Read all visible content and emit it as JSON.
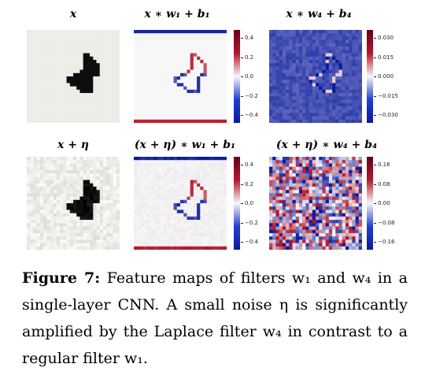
{
  "figure": {
    "panels": [
      {
        "title": "x",
        "kind": "input",
        "noisy": false
      },
      {
        "title": "x ∗ w₁ + b₁",
        "kind": "w1",
        "noisy": false,
        "colorbar": {
          "ticks": [
            "0.4",
            "0.2",
            "0.0",
            "−0.2",
            "−0.4"
          ]
        }
      },
      {
        "title": "x ∗ w₄ + b₄",
        "kind": "w4",
        "noisy": false,
        "colorbar": {
          "ticks": [
            "0.030",
            "0.015",
            "0.000",
            "−0.015",
            "−0.030"
          ]
        }
      },
      {
        "title": "x + η",
        "kind": "input",
        "noisy": true
      },
      {
        "title": "(x + η) ∗ w₁ + b₁",
        "kind": "w1",
        "noisy": true,
        "colorbar": {
          "ticks": [
            "0.4",
            "0.2",
            "0.0",
            "−0.2",
            "−0.4"
          ]
        }
      },
      {
        "title": "(x + η) ∗ w₄ + b₄",
        "kind": "w4",
        "noisy": true,
        "colorbar": {
          "ticks": [
            "0.16",
            "0.08",
            "0.00",
            "−0.08",
            "−0.16"
          ]
        }
      }
    ],
    "colors": {
      "positive": "#b2182b",
      "negative": "#0b1a9c",
      "neutral": "#f7f7f7",
      "ink": "#111111"
    }
  },
  "caption": {
    "label": "Figure 7:",
    "text": " Feature maps of filters w₁ and w₄ in a single-layer CNN. A small noise η is significantly amplified by the Laplace filter w₄ in contrast to a regular filter w₁."
  }
}
